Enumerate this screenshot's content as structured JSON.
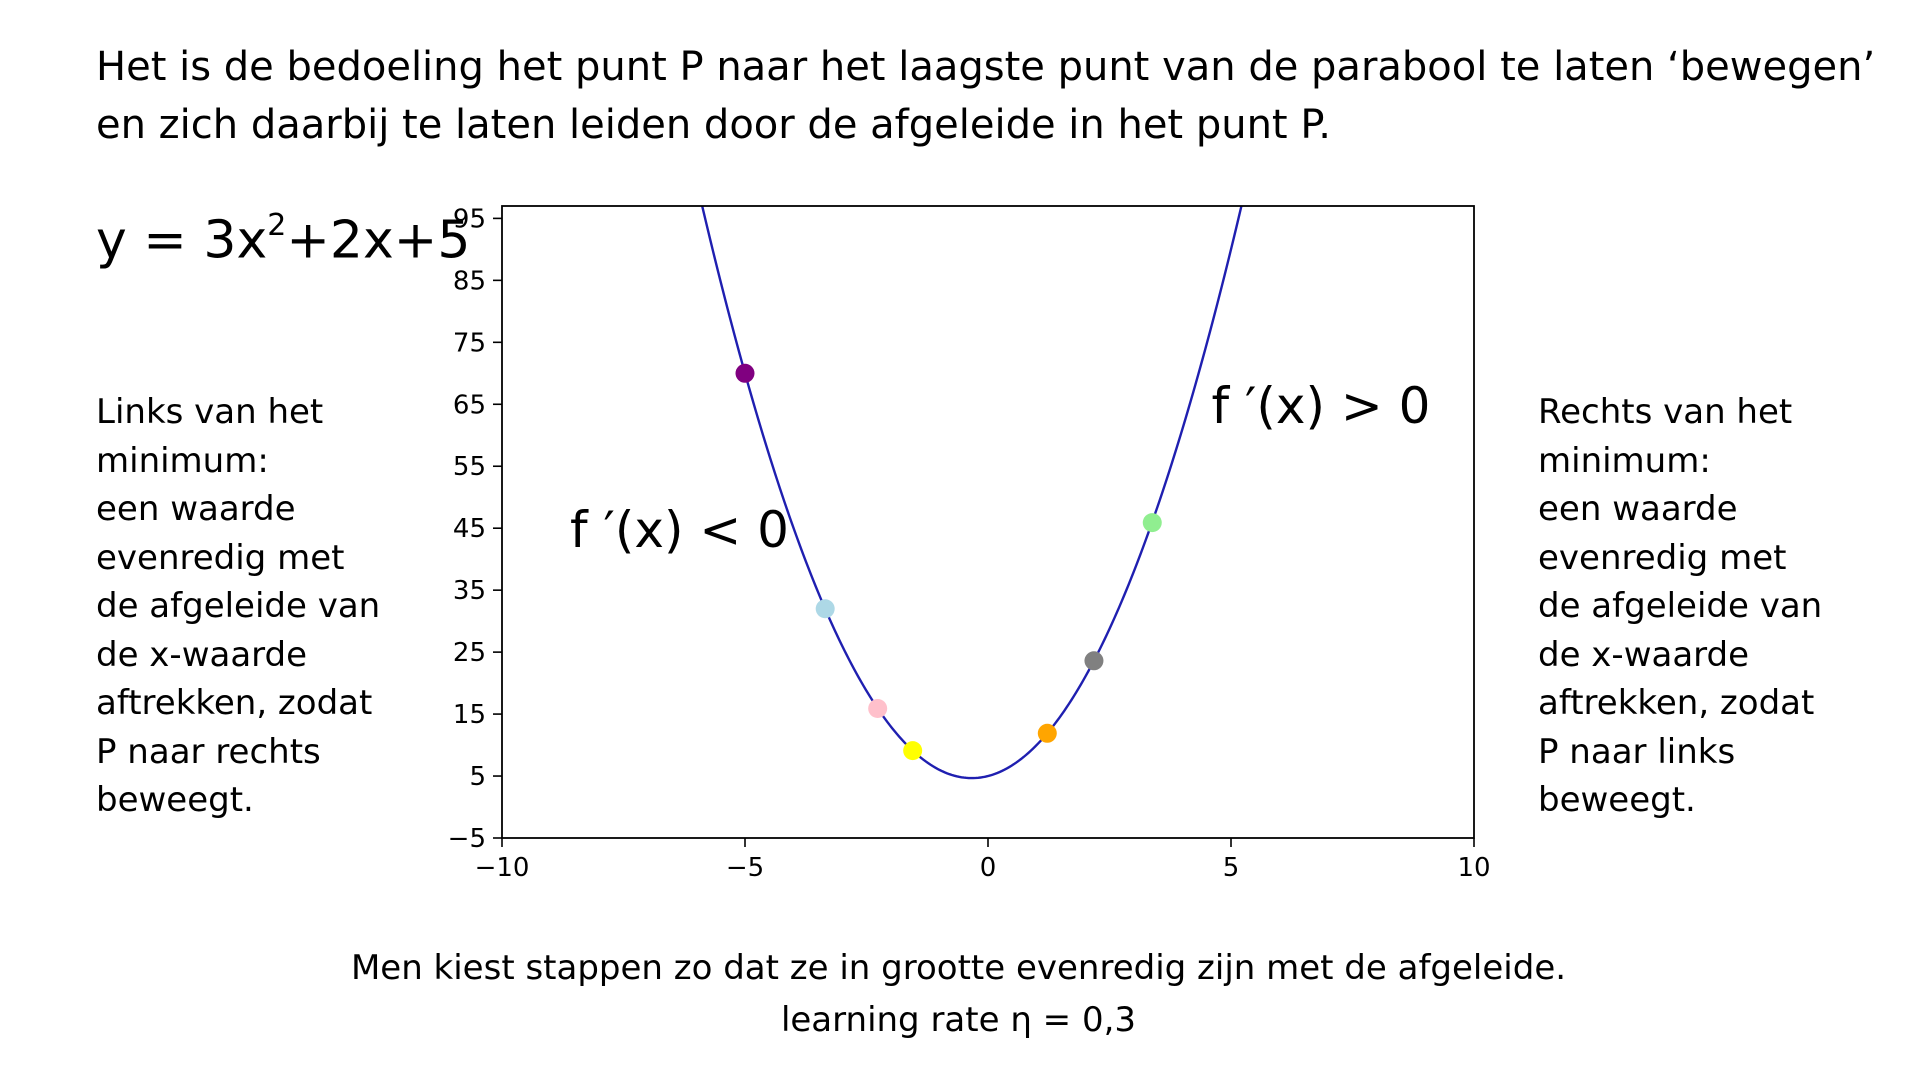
{
  "intro": {
    "line1": "Het is de bedoeling het punt P naar het laagste punt van de parabool te laten ‘bewegen’",
    "line2": "en zich daarbij te laten leiden door de afgeleide in het punt P."
  },
  "formula": {
    "before_exponent": "y = 3x",
    "exponent": "2",
    "after_exponent": "+2x+5"
  },
  "left_note": [
    "Links van het",
    "minimum:",
    "een waarde",
    "evenredig met",
    "de afgeleide van",
    "de x-waarde",
    "aftrekken, zodat",
    "P naar rechts",
    "beweegt."
  ],
  "right_note": [
    "Rechts van het",
    "minimum:",
    "een waarde",
    "evenredig met",
    "de afgeleide van",
    "de x-waarde",
    "aftrekken, zodat",
    "P naar links",
    "beweegt."
  ],
  "bottom": {
    "line1": "Men kiest stappen zo dat ze in grootte evenredig zijn met de afgeleide.",
    "line2": "learning rate η = 0,3"
  },
  "chart_data": {
    "type": "line",
    "title": "",
    "xlabel": "",
    "ylabel": "",
    "xlim": [
      -10,
      10
    ],
    "ylim": [
      -5,
      97
    ],
    "x_ticks": [
      -10,
      -5,
      0,
      5,
      10
    ],
    "x_tick_labels": [
      "−10",
      "−5",
      "0",
      "5",
      "10"
    ],
    "y_ticks": [
      -5,
      5,
      15,
      25,
      35,
      45,
      55,
      65,
      75,
      85,
      95
    ],
    "y_tick_labels": [
      "−5",
      "5",
      "15",
      "25",
      "35",
      "45",
      "55",
      "65",
      "75",
      "85",
      "95"
    ],
    "grid": false,
    "curve": {
      "function": "y = 3x^2 + 2x + 5",
      "coefficients": [
        3,
        2,
        5
      ],
      "x_range": [
        -6.2,
        5.6
      ],
      "color": "#1f1fb0"
    },
    "points": [
      {
        "x": -5.0,
        "y": 70.0,
        "color": "#800080"
      },
      {
        "x": -3.35,
        "y": 32.0,
        "color": "#add8e6"
      },
      {
        "x": -2.27,
        "y": 15.9,
        "color": "#ffc0cb"
      },
      {
        "x": -1.55,
        "y": 9.1,
        "color": "#ffff00"
      },
      {
        "x": 1.22,
        "y": 11.9,
        "color": "#ffa500"
      },
      {
        "x": 2.18,
        "y": 23.6,
        "color": "#808080"
      },
      {
        "x": 3.38,
        "y": 45.9,
        "color": "#90ee90"
      }
    ],
    "annotations": [
      {
        "text": "f ′(x) < 0",
        "x": -8.6,
        "y": 42
      },
      {
        "text": "f ′(x) > 0",
        "x": 4.6,
        "y": 62
      }
    ]
  }
}
